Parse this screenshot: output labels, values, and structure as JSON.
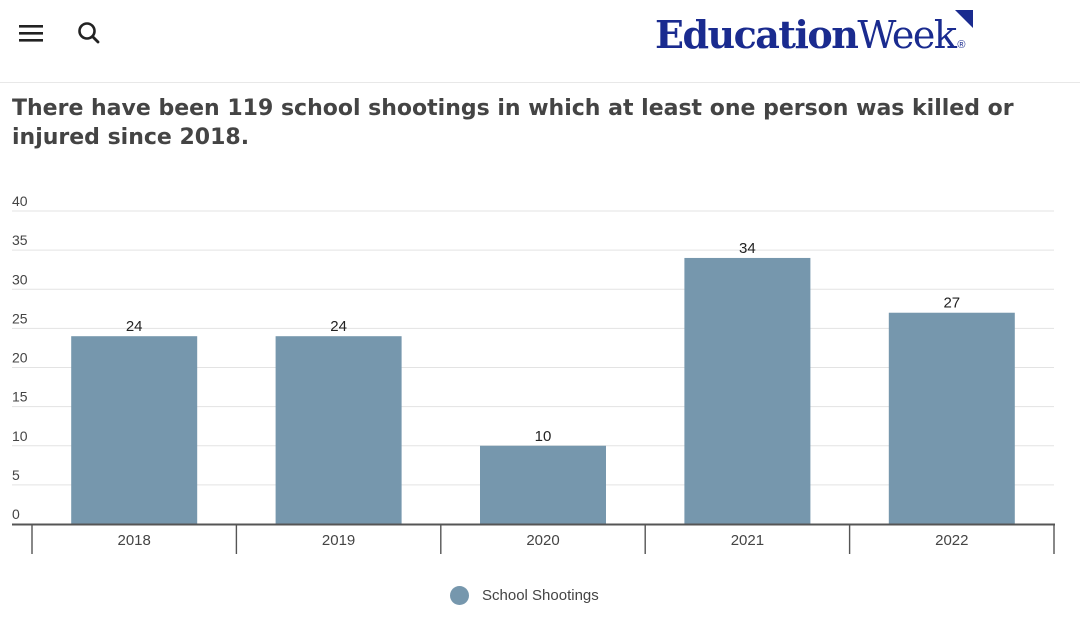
{
  "header": {
    "menu_icon": "hamburger-menu-icon",
    "search_icon": "search-icon",
    "logo_text_bold": "Education",
    "logo_text_light": "Week",
    "logo_registered": "®"
  },
  "headline": "There have been 119 school shootings in which at least one person was killed or injured since 2018.",
  "chart_data": {
    "type": "bar",
    "categories": [
      "2018",
      "2019",
      "2020",
      "2021",
      "2022"
    ],
    "series": [
      {
        "name": "School Shootings",
        "values": [
          24,
          24,
          10,
          34,
          27
        ],
        "color": "#7697ad"
      }
    ],
    "data_labels": [
      "24",
      "24",
      "10",
      "34",
      "27"
    ],
    "y_ticks": [
      0,
      5,
      10,
      15,
      20,
      25,
      30,
      35,
      40
    ],
    "ylim": [
      0,
      40
    ],
    "grid": true,
    "legend": "bottom-center",
    "colors": {
      "grid": "#e3e3e3",
      "axis": "#555555",
      "tick_text": "#444444",
      "label_text": "#222222"
    }
  }
}
